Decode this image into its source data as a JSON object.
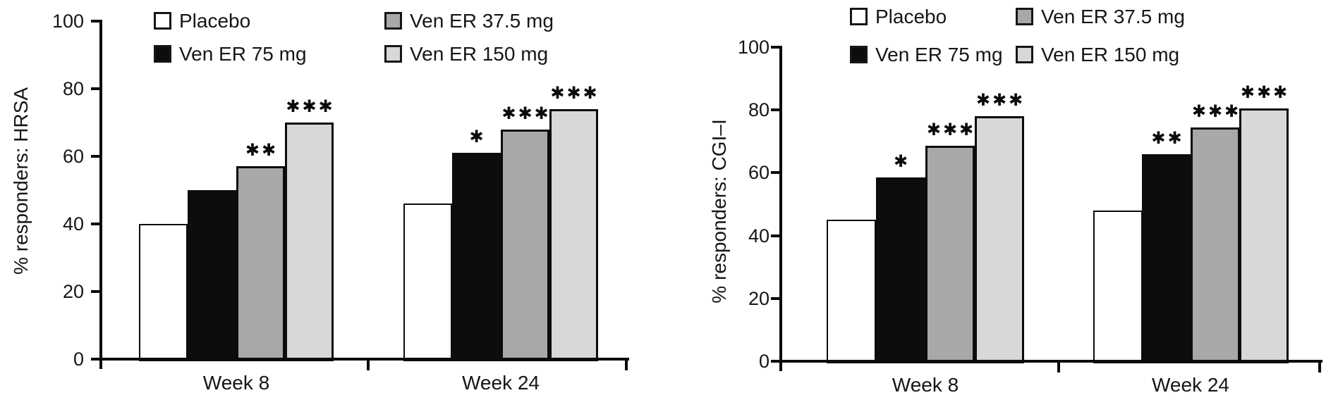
{
  "figure": {
    "background": "#ffffff",
    "ink_color": "#0b0b0b",
    "text_color": "#161616"
  },
  "chart_data": [
    {
      "type": "bar",
      "title": "",
      "ylabel": "% responders: HRSA",
      "xlabel": "",
      "categories": [
        "Week 8",
        "Week 24"
      ],
      "ylim": [
        0,
        100
      ],
      "yticks": [
        0,
        20,
        40,
        60,
        80,
        100
      ],
      "grid": false,
      "legend_position": "top",
      "series": [
        {
          "name": "Placebo",
          "fill": "#ffffff",
          "values": [
            40,
            46
          ],
          "significance": [
            "",
            ""
          ]
        },
        {
          "name": "Ven ER 75 mg",
          "fill": "#0d0d0d",
          "values": [
            50,
            61
          ],
          "significance": [
            "",
            "✱"
          ]
        },
        {
          "name": "Ven ER 37.5 mg",
          "fill": "#a8a8a8",
          "values": [
            57,
            68
          ],
          "significance": [
            "✱✱",
            "✱✱✱"
          ]
        },
        {
          "name": "Ven ER 150 mg",
          "fill": "#d8d8d8",
          "values": [
            70,
            74
          ],
          "significance": [
            "✱✱✱",
            "✱✱✱"
          ]
        }
      ]
    },
    {
      "type": "bar",
      "title": "",
      "ylabel": "% responders: CGI–I",
      "xlabel": "",
      "categories": [
        "Week 8",
        "Week 24"
      ],
      "ylim": [
        0,
        100
      ],
      "yticks": [
        0,
        20,
        40,
        60,
        80,
        100
      ],
      "grid": false,
      "legend_position": "top",
      "series": [
        {
          "name": "Placebo",
          "fill": "#ffffff",
          "values": [
            45,
            48
          ],
          "significance": [
            "",
            ""
          ]
        },
        {
          "name": "Ven ER 75 mg",
          "fill": "#0d0d0d",
          "values": [
            58.5,
            66
          ],
          "significance": [
            "✱",
            "✱✱"
          ]
        },
        {
          "name": "Ven ER 37.5 mg",
          "fill": "#a8a8a8",
          "values": [
            68.5,
            74.5
          ],
          "significance": [
            "✱✱✱",
            "✱✱✱"
          ]
        },
        {
          "name": "Ven ER 150 mg",
          "fill": "#d8d8d8",
          "values": [
            78,
            80.5
          ],
          "significance": [
            "✱✱✱",
            "✱✱✱"
          ]
        }
      ]
    }
  ]
}
